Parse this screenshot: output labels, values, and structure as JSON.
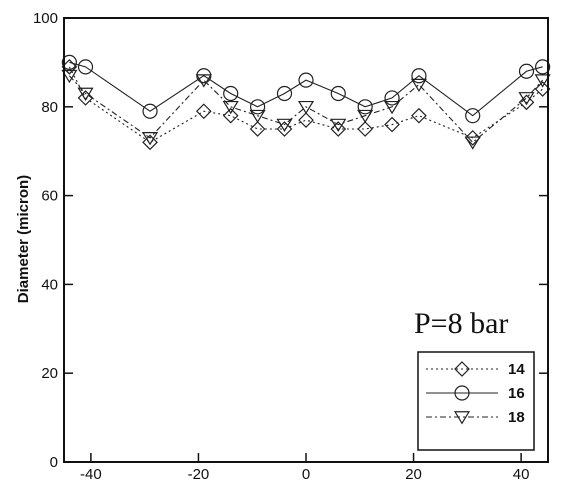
{
  "chart_data": {
    "type": "line",
    "title": "",
    "xlabel": "",
    "ylabel": "Diameter (micron)",
    "xlim": [
      -45,
      45
    ],
    "ylim": [
      0,
      100
    ],
    "xticks": [
      -40,
      -20,
      0,
      20,
      40
    ],
    "yticks": [
      0,
      20,
      40,
      60,
      80,
      100
    ],
    "grid": false,
    "annotation": "P=8 bar",
    "legend_position": "bottom-right",
    "series": [
      {
        "name": "14",
        "marker": "diamond",
        "line_style": "dotted",
        "x": [
          -44,
          -41,
          -29,
          -19,
          -14,
          -9,
          -4,
          0,
          6,
          11,
          16,
          21,
          31,
          41,
          44
        ],
        "y": [
          89,
          82,
          72,
          79,
          78,
          75,
          75,
          77,
          75,
          75,
          76,
          78,
          73,
          81,
          84
        ]
      },
      {
        "name": "16",
        "marker": "circle",
        "line_style": "solid",
        "x": [
          -44,
          -41,
          -29,
          -19,
          -14,
          -9,
          -4,
          0,
          6,
          11,
          16,
          21,
          31,
          41,
          44
        ],
        "y": [
          90,
          89,
          79,
          87,
          83,
          80,
          83,
          86,
          83,
          80,
          82,
          87,
          78,
          88,
          89
        ]
      },
      {
        "name": "18",
        "marker": "triangle-down",
        "line_style": "dash-dot",
        "x": [
          -44,
          -41,
          -29,
          -19,
          -14,
          -9,
          -4,
          0,
          6,
          11,
          16,
          21,
          31,
          41,
          44
        ],
        "y": [
          87,
          83,
          73,
          86,
          80,
          78,
          76,
          80,
          76,
          78,
          80,
          85,
          72,
          82,
          86
        ]
      }
    ]
  }
}
